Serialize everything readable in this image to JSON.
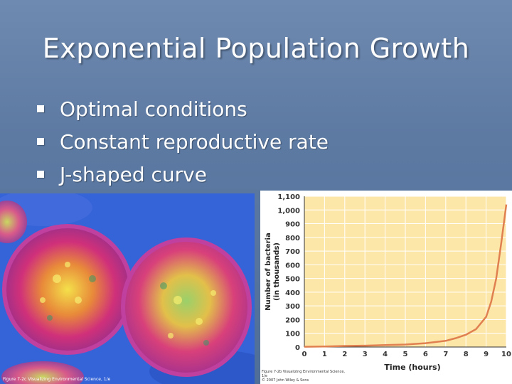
{
  "slide": {
    "title": "Exponential Population Growth",
    "bullets": [
      "Optimal conditions",
      "Constant reproductive rate",
      "J-shaped curve"
    ],
    "photo_caption": "Figure 7-2c Visualizing Environmental Science, 1/e",
    "chart_caption_line1": "Figure 7-2b Visualizing Environmental Science, 1/e",
    "chart_caption_line2": "© 2007 John Wiley & Sons",
    "colors": {
      "background": "#5d7aa3",
      "plot_area": "#fde7a8",
      "curve": "#e08050",
      "bullet": "#ffffff"
    }
  },
  "chart_data": {
    "type": "line",
    "title": "",
    "xlabel": "Time (hours)",
    "ylabel": "Number of bacteria (in thousands)",
    "xlim": [
      0,
      10
    ],
    "ylim": [
      0,
      1100
    ],
    "x_ticks": [
      "0",
      "1",
      "2",
      "3",
      "4",
      "5",
      "6",
      "7",
      "8",
      "9",
      "10"
    ],
    "y_ticks": [
      "0",
      "100",
      "200",
      "300",
      "400",
      "500",
      "600",
      "700",
      "800",
      "900",
      "1,000",
      "1,100"
    ],
    "grid": true,
    "series": [
      {
        "x": [
          0,
          1,
          2,
          3,
          4,
          5,
          6,
          7,
          7.5,
          8,
          8.5,
          9,
          9.25,
          9.5,
          9.75,
          10
        ],
        "y": [
          2,
          4,
          8,
          10,
          14,
          18,
          28,
          45,
          65,
          90,
          130,
          220,
          330,
          500,
          760,
          1040
        ]
      }
    ]
  }
}
